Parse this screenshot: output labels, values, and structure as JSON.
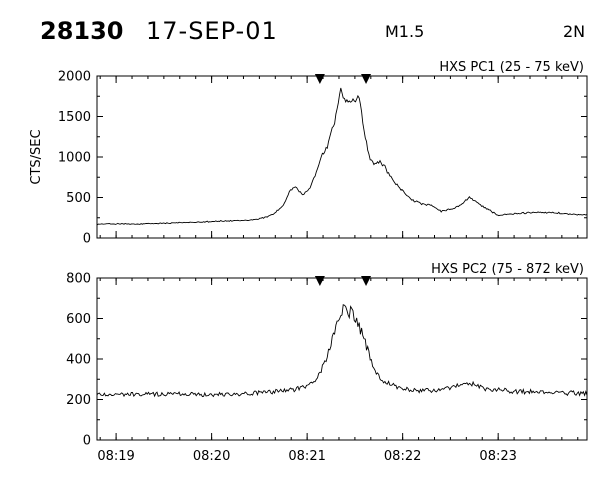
{
  "header": {
    "event_id": "28130",
    "date": "17-SEP-01",
    "flare_class": "M1.5",
    "region": "2N"
  },
  "chart_data": [
    {
      "type": "line",
      "title": "HXS PC1 (25 - 75 keV)",
      "ylabel": "CTS/SEC",
      "xlabel": "",
      "x_unit": "minutes after 08:00 UT",
      "xlim": [
        18.8,
        23.93
      ],
      "ylim": [
        0,
        2000
      ],
      "yticks": [
        0,
        500,
        1000,
        1500,
        2000
      ],
      "marker_times": [
        "08:21:08",
        "08:21:37"
      ],
      "series": [
        {
          "points": [
            [
              18.8,
              170
            ],
            [
              19.0,
              175
            ],
            [
              19.2,
              170
            ],
            [
              19.4,
              178
            ],
            [
              19.6,
              185
            ],
            [
              19.8,
              195
            ],
            [
              20.0,
              205
            ],
            [
              20.2,
              210
            ],
            [
              20.4,
              220
            ],
            [
              20.55,
              250
            ],
            [
              20.65,
              300
            ],
            [
              20.75,
              400
            ],
            [
              20.82,
              580
            ],
            [
              20.88,
              640
            ],
            [
              20.95,
              520
            ],
            [
              21.02,
              600
            ],
            [
              21.1,
              820
            ],
            [
              21.15,
              1000
            ],
            [
              21.22,
              1150
            ],
            [
              21.3,
              1500
            ],
            [
              21.35,
              1820
            ],
            [
              21.4,
              1700
            ],
            [
              21.45,
              1650
            ],
            [
              21.5,
              1700
            ],
            [
              21.55,
              1720
            ],
            [
              21.6,
              1300
            ],
            [
              21.65,
              1000
            ],
            [
              21.7,
              900
            ],
            [
              21.75,
              950
            ],
            [
              21.8,
              900
            ],
            [
              21.9,
              700
            ],
            [
              22.0,
              580
            ],
            [
              22.1,
              470
            ],
            [
              22.2,
              420
            ],
            [
              22.3,
              400
            ],
            [
              22.4,
              330
            ],
            [
              22.5,
              350
            ],
            [
              22.6,
              400
            ],
            [
              22.7,
              500
            ],
            [
              22.8,
              420
            ],
            [
              22.9,
              350
            ],
            [
              23.0,
              280
            ],
            [
              23.2,
              300
            ],
            [
              23.4,
              320
            ],
            [
              23.6,
              310
            ],
            [
              23.8,
              290
            ],
            [
              23.93,
              280
            ]
          ]
        }
      ]
    },
    {
      "type": "line",
      "title": "HXS PC2 (75 - 872 keV)",
      "ylabel": "",
      "xlabel": "",
      "x_unit": "minutes after 08:00 UT",
      "xlim": [
        18.8,
        23.93
      ],
      "ylim": [
        0,
        800
      ],
      "yticks": [
        0,
        200,
        400,
        600,
        800
      ],
      "xticks": [
        "08:19",
        "08:20",
        "08:21",
        "08:22",
        "08:23"
      ],
      "marker_times": [
        "08:21:08",
        "08:21:37"
      ],
      "series": [
        {
          "points": [
            [
              18.8,
              225
            ],
            [
              19.2,
              225
            ],
            [
              19.6,
              228
            ],
            [
              20.0,
              225
            ],
            [
              20.4,
              230
            ],
            [
              20.7,
              240
            ],
            [
              20.9,
              255
            ],
            [
              21.0,
              265
            ],
            [
              21.1,
              300
            ],
            [
              21.2,
              400
            ],
            [
              21.28,
              520
            ],
            [
              21.33,
              600
            ],
            [
              21.38,
              660
            ],
            [
              21.42,
              620
            ],
            [
              21.47,
              640
            ],
            [
              21.52,
              580
            ],
            [
              21.58,
              520
            ],
            [
              21.65,
              420
            ],
            [
              21.7,
              340
            ],
            [
              21.8,
              290
            ],
            [
              21.95,
              260
            ],
            [
              22.1,
              245
            ],
            [
              22.3,
              245
            ],
            [
              22.5,
              255
            ],
            [
              22.7,
              280
            ],
            [
              22.9,
              250
            ],
            [
              23.2,
              240
            ],
            [
              23.5,
              235
            ],
            [
              23.93,
              230
            ]
          ]
        }
      ]
    }
  ]
}
